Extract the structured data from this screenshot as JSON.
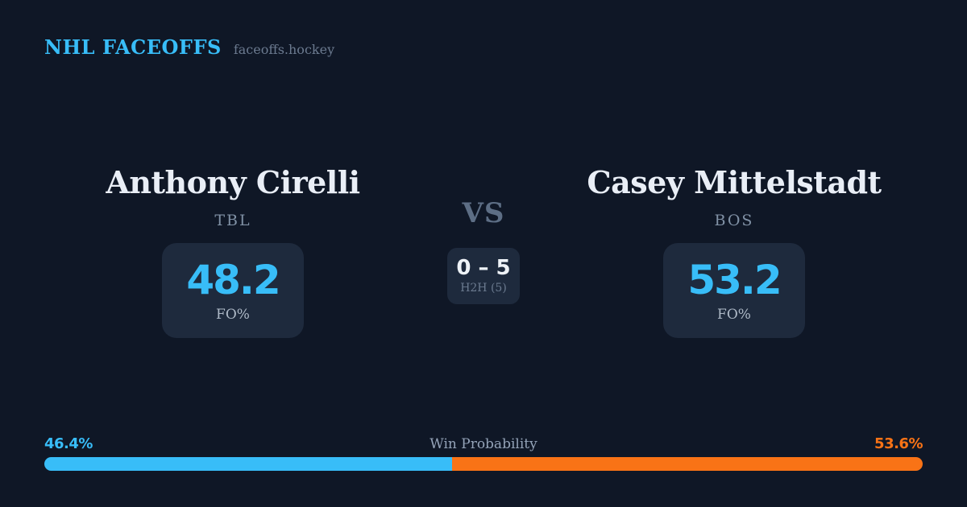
{
  "header": {
    "brand": "NHL FACEOFFS",
    "site": "faceoffs.hockey"
  },
  "matchup": {
    "vs_label": "VS",
    "h2h": {
      "record": "0 – 5",
      "label": "H2H (5)"
    },
    "players": [
      {
        "name": "Anthony Cirelli",
        "team": "TBL",
        "fo_pct": "48.2",
        "stat_label": "FO%"
      },
      {
        "name": "Casey Mittelstadt",
        "team": "BOS",
        "fo_pct": "53.2",
        "stat_label": "FO%"
      }
    ]
  },
  "win_probability": {
    "label": "Win Probability",
    "left_pct_label": "46.4%",
    "right_pct_label": "53.6%",
    "left_value": 46.4,
    "right_value": 53.6
  },
  "colors": {
    "background": "#0f1726",
    "card": "#1e2a3d",
    "accent_blue": "#38bdf8",
    "accent_orange": "#f97316",
    "text_primary": "#e9eef6",
    "text_muted": "#94a3b8",
    "text_dim": "#6b7a8f"
  },
  "chart_data": {
    "type": "bar",
    "title": "Win Probability",
    "categories": [
      "Anthony Cirelli (TBL)",
      "Casey Mittelstadt (BOS)"
    ],
    "values": [
      46.4,
      53.6
    ],
    "unit": "%",
    "orientation": "horizontal-stacked-single-bar",
    "colors": [
      "#38bdf8",
      "#f97316"
    ],
    "legend_position": "none",
    "axes": "none",
    "supporting_stats": {
      "faceoff_pct": [
        48.2,
        53.2
      ],
      "h2h_record": "0 – 5",
      "h2h_games": 5
    }
  }
}
